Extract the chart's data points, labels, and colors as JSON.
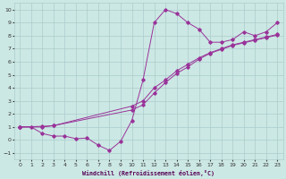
{
  "background_color": "#cce8e4",
  "grid_color": "#aacccc",
  "line_color": "#993399",
  "xlabel": "Windchill (Refroidissement éolien,°C)",
  "ylim": [
    -1.5,
    10.5
  ],
  "xlim": [
    -0.5,
    23.5
  ],
  "yticks": [
    -1,
    0,
    1,
    2,
    3,
    4,
    5,
    6,
    7,
    8,
    9,
    10
  ],
  "xticks": [
    0,
    1,
    2,
    3,
    4,
    5,
    6,
    7,
    8,
    9,
    10,
    11,
    12,
    13,
    14,
    15,
    16,
    17,
    18,
    19,
    20,
    21,
    22,
    23
  ],
  "curve1_x": [
    0,
    1,
    2,
    3,
    4,
    5,
    6,
    7,
    8,
    9,
    10,
    11,
    12,
    13,
    14,
    15,
    16,
    17,
    18,
    19,
    20,
    21,
    22,
    23
  ],
  "curve1_y": [
    1.0,
    1.0,
    0.5,
    0.3,
    0.3,
    0.1,
    0.15,
    -0.4,
    -0.8,
    -0.1,
    1.5,
    4.6,
    9.0,
    10.0,
    9.7,
    9.0,
    8.5,
    7.5,
    7.5,
    7.7,
    8.3,
    8.0,
    8.3,
    9.0
  ],
  "curve2_x": [
    0,
    2,
    3,
    10,
    11,
    12,
    13,
    14,
    15,
    16,
    17,
    18,
    19,
    20,
    21,
    22,
    23
  ],
  "curve2_y": [
    1.0,
    1.0,
    1.1,
    2.6,
    3.0,
    4.0,
    4.6,
    5.3,
    5.8,
    6.3,
    6.7,
    7.0,
    7.3,
    7.5,
    7.7,
    7.9,
    8.1
  ],
  "curve3_x": [
    0,
    2,
    3,
    10,
    11,
    12,
    13,
    14,
    15,
    16,
    17,
    18,
    19,
    20,
    21,
    22,
    23
  ],
  "curve3_y": [
    1.0,
    1.05,
    1.1,
    2.3,
    2.7,
    3.6,
    4.4,
    5.1,
    5.6,
    6.2,
    6.65,
    6.95,
    7.25,
    7.45,
    7.65,
    7.85,
    8.05
  ]
}
